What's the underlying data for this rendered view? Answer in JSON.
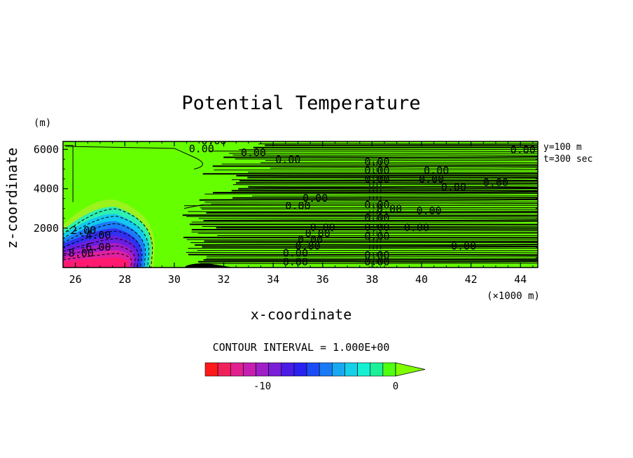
{
  "chart_data": {
    "type": "heatmap",
    "title": "Potential Temperature",
    "xlabel": "x-coordinate",
    "ylabel": "z-coordinate",
    "x_unit": "(×1000 m)",
    "y_unit": "(m)",
    "xlim": [
      25.5,
      44.7
    ],
    "ylim": [
      0,
      6400
    ],
    "x_ticks": [
      "26",
      "28",
      "30",
      "32",
      "34",
      "36",
      "38",
      "40",
      "42",
      "44"
    ],
    "x_tick_values": [
      26,
      28,
      30,
      32,
      34,
      36,
      38,
      40,
      42,
      44
    ],
    "y_ticks": [
      "2000",
      "4000",
      "6000"
    ],
    "y_tick_values": [
      2000,
      4000,
      6000
    ],
    "info": [
      "y=100 m",
      "t=300 sec"
    ],
    "contour_interval_text": "CONTOUR INTERVAL = 1.000E+00",
    "contour_labels": [
      {
        "text": "0.00",
        "x": 31.6,
        "z": 6250
      },
      {
        "text": "0.00",
        "x": 31.1,
        "z": 5850
      },
      {
        "text": "0.00",
        "x": 33.2,
        "z": 5650
      },
      {
        "text": "0.00",
        "x": 34.6,
        "z": 5300
      },
      {
        "text": "0.00",
        "x": 38.2,
        "z": 5200
      },
      {
        "text": "0.00",
        "x": 38.2,
        "z": 4750
      },
      {
        "text": "0.00",
        "x": 38.2,
        "z": 4300
      },
      {
        "text": "0.00",
        "x": 40.6,
        "z": 4750
      },
      {
        "text": "0.00",
        "x": 40.4,
        "z": 4300
      },
      {
        "text": "0.00",
        "x": 41.3,
        "z": 3900
      },
      {
        "text": "0.00",
        "x": 43.0,
        "z": 4150
      },
      {
        "text": "0.00",
        "x": 44.1,
        "z": 5800
      },
      {
        "text": "0.00",
        "x": 35.7,
        "z": 3350
      },
      {
        "text": "0.00",
        "x": 35.0,
        "z": 2950
      },
      {
        "text": "0.00",
        "x": 38.2,
        "z": 3000
      },
      {
        "text": "0.00",
        "x": 38.7,
        "z": 2800
      },
      {
        "text": "0.00",
        "x": 40.3,
        "z": 2700
      },
      {
        "text": "0.00",
        "x": 38.2,
        "z": 2350
      },
      {
        "text": "0.00",
        "x": 39.8,
        "z": 1850
      },
      {
        "text": "0.00",
        "x": 36.0,
        "z": 1850
      },
      {
        "text": "0.00",
        "x": 35.8,
        "z": 1550
      },
      {
        "text": "0.00",
        "x": 35.5,
        "z": 1250
      },
      {
        "text": "0.00",
        "x": 38.2,
        "z": 1850
      },
      {
        "text": "0.00",
        "x": 38.2,
        "z": 1400
      },
      {
        "text": "0.00",
        "x": 35.4,
        "z": 900
      },
      {
        "text": "0.00",
        "x": 34.9,
        "z": 550
      },
      {
        "text": "0.00",
        "x": 34.9,
        "z": 100
      },
      {
        "text": "0.00",
        "x": 38.2,
        "z": 450
      },
      {
        "text": "0.00",
        "x": 38.2,
        "z": 100
      },
      {
        "text": "0.00",
        "x": 41.7,
        "z": 900
      },
      {
        "text": "-2.00",
        "x": 26.2,
        "z": 1700
      },
      {
        "text": "-4.00",
        "x": 26.8,
        "z": 1450
      },
      {
        "text": "-6.00",
        "x": 26.8,
        "z": 850
      },
      {
        "text": "-8.00",
        "x": 26.1,
        "z": 550
      }
    ],
    "colorbar": {
      "ticks": [
        "-10",
        "0"
      ],
      "tick_values": [
        -10,
        0
      ],
      "levels": [
        -14,
        -13,
        -12,
        -11,
        -10,
        -9,
        -8,
        -7,
        -6,
        -5,
        -4,
        -3,
        -2,
        -1,
        0
      ],
      "colors": [
        "#ff1a1a",
        "#f0205a",
        "#e2208f",
        "#c41fb0",
        "#a020c8",
        "#7a1ed8",
        "#4a1ce6",
        "#2a22f0",
        "#1c4cf6",
        "#1a7af6",
        "#18a8f2",
        "#16d0ea",
        "#16f0d2",
        "#1af098",
        "#50ff10"
      ],
      "extend_color": "#7fff00"
    },
    "field": {
      "background": "#66ff00",
      "cold_pool_colors": [
        "#9cf21c",
        "#2ef0b0",
        "#14c8f0",
        "#1a7cf8",
        "#3030f0",
        "#6a1ee0",
        "#a81cc8",
        "#e020a0",
        "#ff1a70"
      ]
    }
  }
}
